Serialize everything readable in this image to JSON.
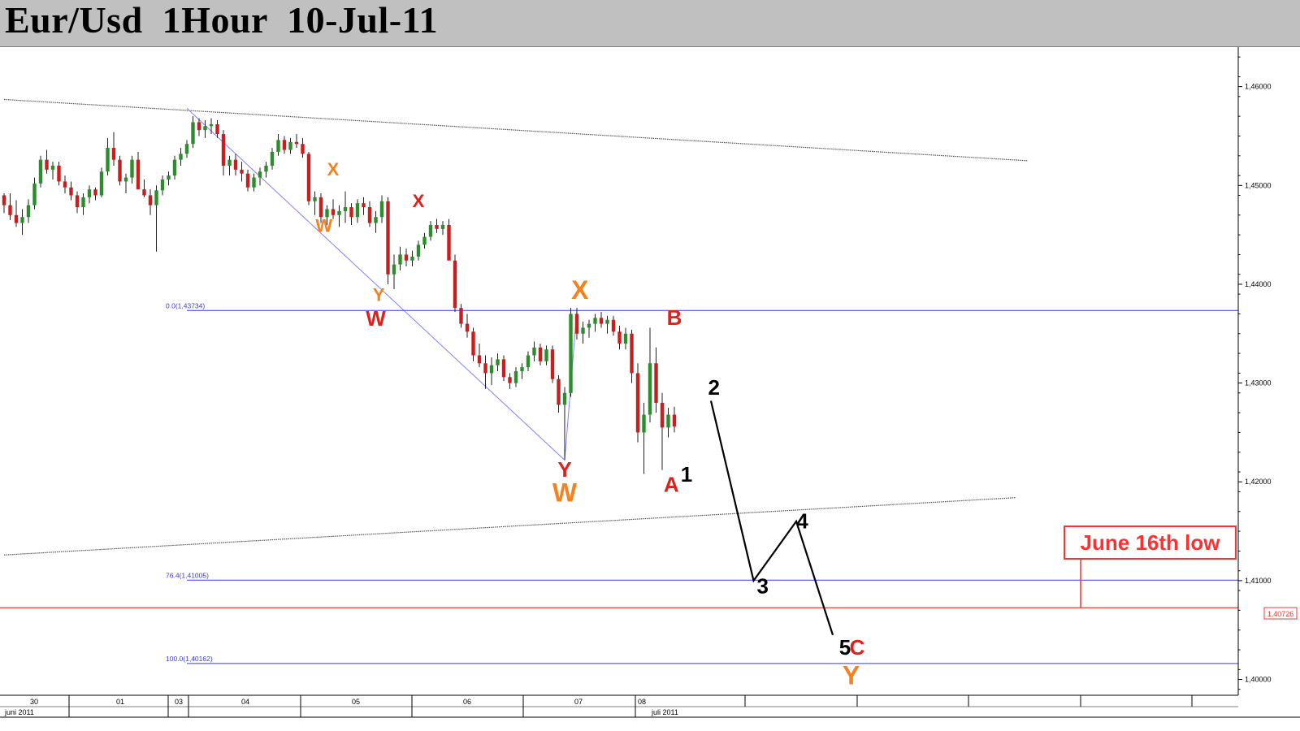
{
  "title": "Eur/Usd  1Hour  10-Jul-11",
  "chart_data": {
    "type": "candlestick",
    "instrument": "Eur/Usd",
    "timeframe": "1Hour",
    "y_ticks": [
      "1,40000",
      "1,41000",
      "1,42000",
      "1,43000",
      "1,44000",
      "1,45000",
      "1,46000"
    ],
    "y_tick_values": [
      1.4,
      1.41,
      1.42,
      1.43,
      1.44,
      1.45,
      1.46
    ],
    "ylim": [
      1.3984,
      1.464
    ],
    "x_ticks": [
      "30",
      "01",
      "03",
      "04",
      "05",
      "06",
      "07",
      "08"
    ],
    "x_month_labels": [
      "juni 2011",
      "juli 2011"
    ],
    "price_marker": "1,40726",
    "fib_levels": [
      {
        "label": "0.0(1,43734)",
        "value": 1.43734
      },
      {
        "label": "76.4(1,41005)",
        "value": 1.41005
      },
      {
        "label": "100.0(1,40162)",
        "value": 1.40162
      }
    ],
    "horizontal_level": {
      "value": 1.40726,
      "callout": "June 16th low"
    },
    "colors": {
      "bull": "#2e8b2e",
      "bear": "#c81e1e",
      "fib": "#3a3ae0",
      "trend": "#555555",
      "wave_red": "#e0201c",
      "wave_orange": "#f58220",
      "wave_black": "#000000",
      "support": "#ff3030"
    },
    "trendlines": [
      {
        "from": {
          "hour": 0,
          "price": 1.4587
        },
        "to": {
          "hour": 168,
          "price": 1.4525
        }
      },
      {
        "from": {
          "hour": 0,
          "price": 1.4126
        },
        "to": {
          "hour": 166,
          "price": 1.4184
        }
      },
      {
        "from": {
          "hour": 30,
          "price": 1.4578
        },
        "to": {
          "hour": 92,
          "price": 1.4222
        }
      },
      {
        "from": {
          "hour": 92,
          "price": 1.4222
        },
        "to": {
          "hour": 94,
          "price": 1.4373
        }
      }
    ],
    "projection": [
      {
        "hour": 116,
        "price": 1.4282
      },
      {
        "hour": 123,
        "price": 1.41
      },
      {
        "hour": 130,
        "price": 1.416
      },
      {
        "hour": 136,
        "price": 1.4045
      }
    ],
    "wave_labels": [
      {
        "text": "X",
        "color": "orange",
        "hour": 54,
        "price": 1.451,
        "size": "s"
      },
      {
        "text": "W",
        "color": "orange",
        "hour": 52.5,
        "price": 1.4453,
        "size": "s"
      },
      {
        "text": "X",
        "color": "red",
        "hour": 68,
        "price": 1.4478,
        "size": "s"
      },
      {
        "text": "Y",
        "color": "orange",
        "hour": 61.5,
        "price": 1.4383,
        "size": "s"
      },
      {
        "text": "W",
        "color": "red",
        "hour": 61,
        "price": 1.4358,
        "size": "m"
      },
      {
        "text": "X",
        "color": "orange",
        "hour": 94.5,
        "price": 1.4385,
        "size": "l"
      },
      {
        "text": "Y",
        "color": "red",
        "hour": 92,
        "price": 1.4205,
        "size": "m"
      },
      {
        "text": "W",
        "color": "orange",
        "hour": 92,
        "price": 1.418,
        "size": "l"
      },
      {
        "text": "B",
        "color": "red",
        "hour": 110,
        "price": 1.4359,
        "size": "m"
      },
      {
        "text": "A",
        "color": "red",
        "hour": 109.5,
        "price": 1.419,
        "size": "m"
      },
      {
        "text": "1",
        "color": "black",
        "hour": 112,
        "price": 1.42,
        "size": "m"
      },
      {
        "text": "2",
        "color": "black",
        "hour": 116.5,
        "price": 1.4288,
        "size": "m"
      },
      {
        "text": "3",
        "color": "black",
        "hour": 124.5,
        "price": 1.4087,
        "size": "m"
      },
      {
        "text": "4",
        "color": "black",
        "hour": 131,
        "price": 1.4153,
        "size": "m"
      },
      {
        "text": "5",
        "color": "black",
        "hour": 138,
        "price": 1.4025,
        "size": "m"
      },
      {
        "text": "C",
        "color": "red",
        "hour": 140,
        "price": 1.4025,
        "size": "m"
      },
      {
        "text": "Y",
        "color": "orange",
        "hour": 139,
        "price": 1.3995,
        "size": "l"
      }
    ],
    "candles": [
      [
        1.449,
        1.4492,
        1.4472,
        1.448
      ],
      [
        1.448,
        1.4492,
        1.4465,
        1.447
      ],
      [
        1.447,
        1.4485,
        1.4458,
        1.4462
      ],
      [
        1.4462,
        1.4476,
        1.445,
        1.4468
      ],
      [
        1.4468,
        1.4486,
        1.4462,
        1.448
      ],
      [
        1.448,
        1.4508,
        1.4476,
        1.4502
      ],
      [
        1.4502,
        1.453,
        1.4498,
        1.4526
      ],
      [
        1.4526,
        1.4536,
        1.4512,
        1.4516
      ],
      [
        1.4516,
        1.4524,
        1.4506,
        1.452
      ],
      [
        1.452,
        1.4524,
        1.45,
        1.4504
      ],
      [
        1.4504,
        1.451,
        1.4492,
        1.4498
      ],
      [
        1.4498,
        1.4504,
        1.4485,
        1.449
      ],
      [
        1.449,
        1.4494,
        1.4472,
        1.4478
      ],
      [
        1.4478,
        1.4492,
        1.447,
        1.4488
      ],
      [
        1.4488,
        1.45,
        1.4482,
        1.4496
      ],
      [
        1.4496,
        1.4498,
        1.4485,
        1.449
      ],
      [
        1.449,
        1.4518,
        1.4488,
        1.4514
      ],
      [
        1.4514,
        1.4548,
        1.451,
        1.4538
      ],
      [
        1.4538,
        1.4554,
        1.452,
        1.4526
      ],
      [
        1.4526,
        1.453,
        1.45,
        1.4504
      ],
      [
        1.4504,
        1.4512,
        1.4492,
        1.4508
      ],
      [
        1.4508,
        1.453,
        1.4502,
        1.4526
      ],
      [
        1.4526,
        1.4534,
        1.45,
        1.4496
      ],
      [
        1.4496,
        1.4506,
        1.4488,
        1.449
      ],
      [
        1.449,
        1.4496,
        1.447,
        1.448
      ],
      [
        1.448,
        1.45,
        1.4433,
        1.4495
      ],
      [
        1.4495,
        1.451,
        1.449,
        1.4506
      ],
      [
        1.4506,
        1.4514,
        1.45,
        1.451
      ],
      [
        1.451,
        1.453,
        1.4506,
        1.4526
      ],
      [
        1.4526,
        1.4538,
        1.452,
        1.4532
      ],
      [
        1.4532,
        1.4546,
        1.4528,
        1.4542
      ],
      [
        1.4542,
        1.457,
        1.4538,
        1.4564
      ],
      [
        1.4564,
        1.4568,
        1.455,
        1.4556
      ],
      [
        1.4556,
        1.4566,
        1.4548,
        1.456
      ],
      [
        1.456,
        1.4568,
        1.4552,
        1.4562
      ],
      [
        1.4562,
        1.4566,
        1.4548,
        1.4552
      ],
      [
        1.4552,
        1.4556,
        1.451,
        1.452
      ],
      [
        1.452,
        1.453,
        1.451,
        1.4526
      ],
      [
        1.4526,
        1.4532,
        1.451,
        1.4516
      ],
      [
        1.4516,
        1.4524,
        1.4504,
        1.4512
      ],
      [
        1.4512,
        1.4516,
        1.4494,
        1.4498
      ],
      [
        1.4498,
        1.4512,
        1.4494,
        1.4508
      ],
      [
        1.4508,
        1.4518,
        1.45,
        1.4514
      ],
      [
        1.4514,
        1.4524,
        1.4508,
        1.452
      ],
      [
        1.452,
        1.4538,
        1.4516,
        1.4534
      ],
      [
        1.4534,
        1.4552,
        1.453,
        1.4546
      ],
      [
        1.4546,
        1.455,
        1.4532,
        1.4536
      ],
      [
        1.4536,
        1.4548,
        1.4532,
        1.4544
      ],
      [
        1.4544,
        1.4552,
        1.4538,
        1.4542
      ],
      [
        1.4542,
        1.4548,
        1.4528,
        1.4532
      ],
      [
        1.4532,
        1.4534,
        1.448,
        1.4484
      ],
      [
        1.4484,
        1.4494,
        1.447,
        1.4488
      ],
      [
        1.4488,
        1.4492,
        1.4462,
        1.4468
      ],
      [
        1.4468,
        1.448,
        1.446,
        1.4476
      ],
      [
        1.4476,
        1.4486,
        1.4466,
        1.447
      ],
      [
        1.447,
        1.448,
        1.4458,
        1.4474
      ],
      [
        1.4474,
        1.4494,
        1.4462,
        1.4478
      ],
      [
        1.4478,
        1.4482,
        1.446,
        1.4468
      ],
      [
        1.4468,
        1.4486,
        1.4462,
        1.4482
      ],
      [
        1.4482,
        1.4488,
        1.447,
        1.4478
      ],
      [
        1.4478,
        1.4484,
        1.4458,
        1.4462
      ],
      [
        1.4462,
        1.4474,
        1.4452,
        1.4468
      ],
      [
        1.4468,
        1.449,
        1.4462,
        1.4484
      ],
      [
        1.4484,
        1.4488,
        1.44,
        1.441
      ],
      [
        1.441,
        1.443,
        1.4395,
        1.442
      ],
      [
        1.442,
        1.4438,
        1.4414,
        1.443
      ],
      [
        1.443,
        1.4436,
        1.4418,
        1.4424
      ],
      [
        1.4424,
        1.4434,
        1.4418,
        1.4428
      ],
      [
        1.4428,
        1.4444,
        1.4424,
        1.444
      ],
      [
        1.444,
        1.4452,
        1.4436,
        1.4448
      ],
      [
        1.4448,
        1.4464,
        1.4444,
        1.446
      ],
      [
        1.446,
        1.4466,
        1.4452,
        1.4456
      ],
      [
        1.4456,
        1.4464,
        1.445,
        1.446
      ],
      [
        1.446,
        1.4466,
        1.443,
        1.4424
      ],
      [
        1.4424,
        1.443,
        1.4372,
        1.4376
      ],
      [
        1.4376,
        1.438,
        1.4356,
        1.436
      ],
      [
        1.436,
        1.437,
        1.4346,
        1.4352
      ],
      [
        1.4352,
        1.4356,
        1.4322,
        1.4328
      ],
      [
        1.4328,
        1.434,
        1.4316,
        1.432
      ],
      [
        1.432,
        1.4328,
        1.4294,
        1.431
      ],
      [
        1.431,
        1.4326,
        1.4298,
        1.4318
      ],
      [
        1.4318,
        1.433,
        1.4312,
        1.4324
      ],
      [
        1.4324,
        1.4328,
        1.4302,
        1.4306
      ],
      [
        1.4306,
        1.431,
        1.4294,
        1.43
      ],
      [
        1.43,
        1.4316,
        1.4296,
        1.4312
      ],
      [
        1.4312,
        1.432,
        1.4304,
        1.4316
      ],
      [
        1.4316,
        1.4332,
        1.4312,
        1.4328
      ],
      [
        1.4328,
        1.4342,
        1.4322,
        1.4336
      ],
      [
        1.4336,
        1.434,
        1.4318,
        1.4322
      ],
      [
        1.4322,
        1.4338,
        1.4318,
        1.4334
      ],
      [
        1.4334,
        1.4338,
        1.43,
        1.4304
      ],
      [
        1.4304,
        1.4308,
        1.427,
        1.4278
      ],
      [
        1.4278,
        1.4296,
        1.4222,
        1.429
      ],
      [
        1.429,
        1.4376,
        1.4286,
        1.437
      ],
      [
        1.437,
        1.4376,
        1.4344,
        1.435
      ],
      [
        1.435,
        1.4362,
        1.434,
        1.4356
      ],
      [
        1.4356,
        1.4364,
        1.4346,
        1.436
      ],
      [
        1.436,
        1.437,
        1.4352,
        1.4366
      ],
      [
        1.4366,
        1.4372,
        1.4356,
        1.436
      ],
      [
        1.436,
        1.4368,
        1.435,
        1.4364
      ],
      [
        1.4364,
        1.4368,
        1.4348,
        1.4352
      ],
      [
        1.4352,
        1.4358,
        1.4334,
        1.434
      ],
      [
        1.434,
        1.4356,
        1.4334,
        1.435
      ],
      [
        1.435,
        1.4354,
        1.43,
        1.431
      ],
      [
        1.431,
        1.432,
        1.424,
        1.425
      ],
      [
        1.425,
        1.428,
        1.4208,
        1.4268
      ],
      [
        1.4268,
        1.4356,
        1.426,
        1.432
      ],
      [
        1.432,
        1.4336,
        1.427,
        1.428
      ],
      [
        1.428,
        1.429,
        1.4212,
        1.4255
      ],
      [
        1.4255,
        1.4275,
        1.4245,
        1.4268
      ],
      [
        1.4268,
        1.4276,
        1.425,
        1.4256
      ]
    ]
  }
}
